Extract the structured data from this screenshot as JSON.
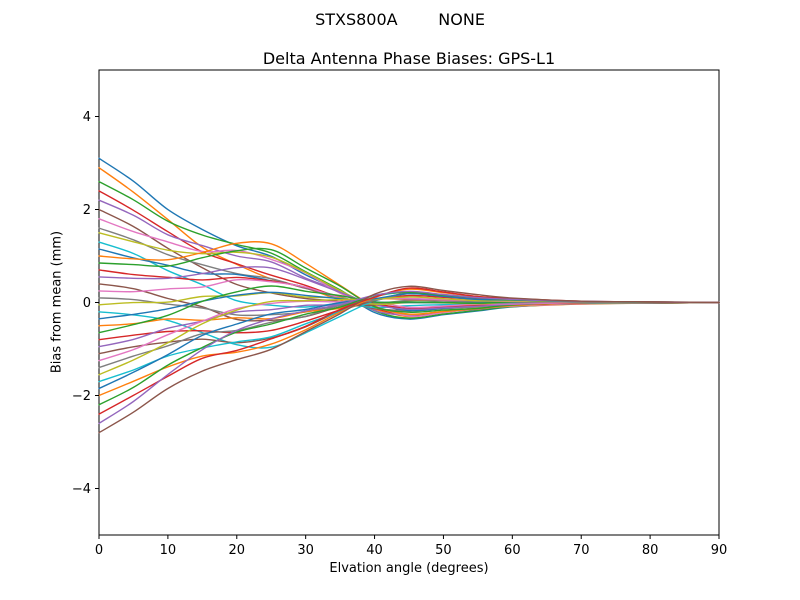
{
  "chart_data": {
    "type": "line",
    "suptitle": "STXS800A        NONE",
    "title": "Delta Antenna Phase Biases: GPS-L1",
    "xlabel": "Elvation angle (degrees)",
    "ylabel": "Bias from mean (mm)",
    "xlim": [
      0,
      90
    ],
    "ylim": [
      -5,
      5
    ],
    "xticks": [
      0,
      10,
      20,
      30,
      40,
      50,
      60,
      70,
      80,
      90
    ],
    "xtick_labels": [
      "0",
      "10",
      "20",
      "30",
      "40",
      "50",
      "60",
      "70",
      "80",
      "90"
    ],
    "yticks": [
      -4,
      -2,
      0,
      2,
      4
    ],
    "ytick_labels": [
      "−4",
      "−2",
      "0",
      "2",
      "4"
    ],
    "grid": false,
    "legend": "none",
    "line_width": 1.4,
    "palette": [
      "#1f77b4",
      "#ff7f0e",
      "#2ca02c",
      "#d62728",
      "#9467bd",
      "#8c564b",
      "#e377c2",
      "#7f7f7f",
      "#bcbd22",
      "#17becf"
    ],
    "x": [
      0,
      5,
      10,
      15,
      20,
      25,
      30,
      35,
      40,
      45,
      50,
      55,
      60,
      70,
      80,
      90
    ],
    "series_model": "value[j] = start*basis.decay[j] + bump*basis.bump[j] + wiggle*basis.wiggle[j]; all curves converge to 0 mm at 90 degrees",
    "basis": {
      "decay": [
        1.0,
        0.83,
        0.63,
        0.46,
        0.34,
        0.25,
        0.15,
        0.05,
        -0.06,
        -0.11,
        -0.08,
        -0.05,
        -0.03,
        -0.01,
        -0.005,
        0.0
      ],
      "bump": [
        0.0,
        0.1,
        0.3,
        0.6,
        0.95,
        1.0,
        0.7,
        0.3,
        0.0,
        -0.15,
        -0.12,
        -0.08,
        -0.04,
        0.0,
        0.0,
        0.0
      ],
      "wiggle": [
        0.0,
        0.05,
        -0.05,
        0.08,
        -0.08,
        0.06,
        -0.04,
        0.1,
        -0.1,
        0.05,
        0.03,
        -0.03,
        0.02,
        0.01,
        0.0,
        0.0
      ]
    },
    "series": [
      {
        "start": 3.1,
        "bump": 0.2,
        "wiggle": 0.3
      },
      {
        "start": 2.9,
        "bump": -0.2,
        "wiggle": -0.3
      },
      {
        "start": 2.6,
        "bump": 0.4,
        "wiggle": 0.2
      },
      {
        "start": 2.4,
        "bump": 0.0,
        "wiggle": -0.2
      },
      {
        "start": 2.2,
        "bump": 0.3,
        "wiggle": 0.4
      },
      {
        "start": 2.0,
        "bump": -0.3,
        "wiggle": 0.1
      },
      {
        "start": 1.8,
        "bump": 0.5,
        "wiggle": -0.4
      },
      {
        "start": 1.6,
        "bump": 0.1,
        "wiggle": 0.2
      },
      {
        "start": 1.5,
        "bump": 0.6,
        "wiggle": 0.0
      },
      {
        "start": 1.3,
        "bump": -0.4,
        "wiggle": 0.3
      },
      {
        "start": 1.15,
        "bump": 0.2,
        "wiggle": -0.3
      },
      {
        "start": 1.0,
        "bump": 1.0,
        "wiggle": 0.2
      },
      {
        "start": 0.85,
        "bump": 0.9,
        "wiggle": 0.4
      },
      {
        "start": 0.7,
        "bump": 0.3,
        "wiggle": -0.2
      },
      {
        "start": 0.55,
        "bump": 0.6,
        "wiggle": 0.1
      },
      {
        "start": 0.4,
        "bump": -0.5,
        "wiggle": 0.3
      },
      {
        "start": 0.25,
        "bump": 0.4,
        "wiggle": -0.3
      },
      {
        "start": 0.1,
        "bump": -0.3,
        "wiggle": 0.2
      },
      {
        "start": -0.05,
        "bump": 0.2,
        "wiggle": 0.4
      },
      {
        "start": -0.2,
        "bump": -0.9,
        "wiggle": -0.2
      },
      {
        "start": -0.35,
        "bump": 0.3,
        "wiggle": 0.1
      },
      {
        "start": -0.5,
        "bump": -0.2,
        "wiggle": -0.4
      },
      {
        "start": -0.65,
        "bump": 0.5,
        "wiggle": 0.3
      },
      {
        "start": -0.8,
        "bump": -0.4,
        "wiggle": 0.0
      },
      {
        "start": -0.95,
        "bump": 0.1,
        "wiggle": -0.3
      },
      {
        "start": -1.1,
        "bump": -0.5,
        "wiggle": 0.2
      },
      {
        "start": -1.25,
        "bump": 0.3,
        "wiggle": -0.1
      },
      {
        "start": -1.4,
        "bump": -0.1,
        "wiggle": 0.4
      },
      {
        "start": -1.55,
        "bump": 0.4,
        "wiggle": 0.2
      },
      {
        "start": -1.7,
        "bump": -0.3,
        "wiggle": -0.2
      },
      {
        "start": -1.85,
        "bump": 0.2,
        "wiggle": 0.3
      },
      {
        "start": -2.0,
        "bump": -0.4,
        "wiggle": 0.1
      },
      {
        "start": -2.2,
        "bump": 0.1,
        "wiggle": -0.2
      },
      {
        "start": -2.4,
        "bump": -0.2,
        "wiggle": 0.3
      },
      {
        "start": -2.6,
        "bump": 0.3,
        "wiggle": 0.0
      },
      {
        "start": -2.8,
        "bump": -0.3,
        "wiggle": -0.1
      }
    ]
  }
}
